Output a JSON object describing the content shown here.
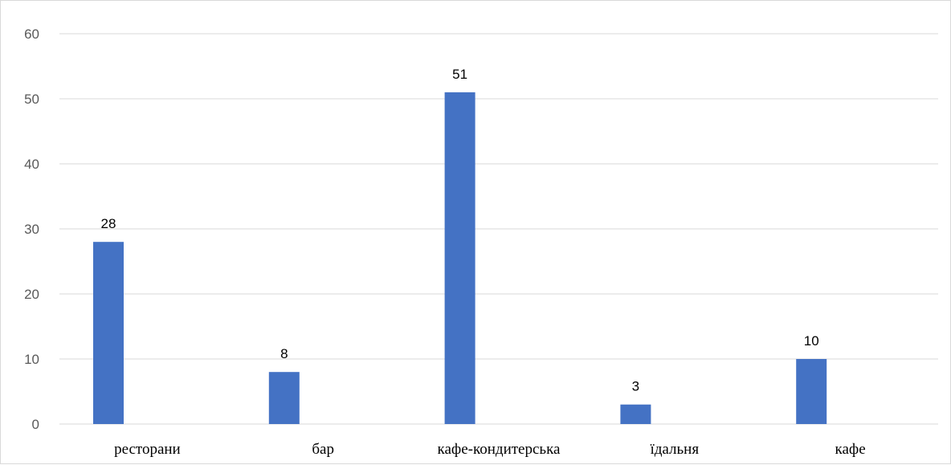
{
  "chart_data": {
    "type": "bar",
    "categories": [
      "ресторани",
      "бар",
      "кафе-кондитерська",
      "їдальня",
      "кафе"
    ],
    "values": [
      28,
      8,
      51,
      3,
      10
    ],
    "ylim": [
      0,
      60
    ],
    "yticks": [
      0,
      10,
      20,
      30,
      40,
      50,
      60
    ],
    "grid": true,
    "data_labels": true,
    "bar_color": "#4472c4",
    "title": "",
    "xlabel": "",
    "ylabel": ""
  }
}
